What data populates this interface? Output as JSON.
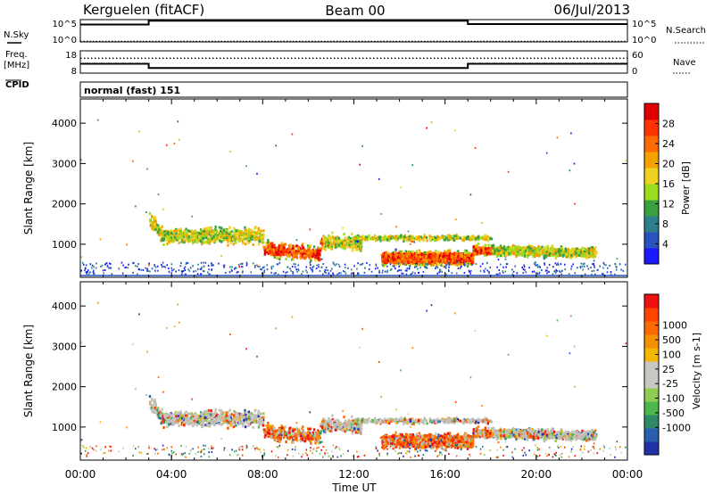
{
  "header": {
    "station": "Kerguelen (fitACF)",
    "beam": "Beam 00",
    "date": "06/Jul/2013"
  },
  "cpid_label": "CPID",
  "cpid_text": "normal (fast) 151",
  "chart_data": [
    {
      "type": "line",
      "name": "noise-panel",
      "left_label": "N.Sky",
      "right_label": "N.Search",
      "left_ticks": [
        "10^5",
        "10^0"
      ],
      "right_ticks": [
        "10^5",
        "10^0"
      ],
      "segments_x": [
        0,
        3,
        3,
        17,
        17,
        24
      ],
      "sky_levels_frac": [
        0.78,
        0.78,
        0.95,
        0.95,
        0.8,
        0.8
      ],
      "search_levels_frac": [
        0.03,
        0.03,
        0.03,
        0.03,
        0.03,
        0.03
      ]
    },
    {
      "type": "line",
      "name": "frequency-panel",
      "left_label_line1": "Freq.",
      "left_label_line2": "[MHz]",
      "right_label": "Nave",
      "left_ticks": [
        "18",
        "8"
      ],
      "right_ticks": [
        "60",
        "0"
      ],
      "left_range": [
        8,
        18
      ],
      "right_range": [
        0,
        60
      ],
      "freq_points": [
        [
          0,
          12.2
        ],
        [
          3,
          12.2
        ],
        [
          3,
          10.3
        ],
        [
          17,
          10.3
        ],
        [
          17,
          12.2
        ],
        [
          24,
          12.2
        ]
      ],
      "nave_points": [
        [
          0,
          40
        ],
        [
          3,
          40
        ],
        [
          3,
          40
        ],
        [
          17,
          40
        ],
        [
          17,
          40
        ],
        [
          24,
          40
        ]
      ]
    },
    {
      "type": "heatmap",
      "name": "power-panel",
      "ylabel": "Slant Range [km]",
      "y_ticks": [
        1000,
        2000,
        3000,
        4000
      ],
      "ylim": [
        180,
        4600
      ],
      "xlim": [
        0,
        24
      ],
      "colorbar_label": "Power [dB]",
      "colorbar_ticks": [
        "4",
        "8",
        "12",
        "16",
        "20",
        "24",
        "28"
      ],
      "colorbar_colors": [
        "#1a1aff",
        "#2a52be",
        "#2e7f8e",
        "#3aa040",
        "#9bdc1e",
        "#f0d020",
        "#f5a200",
        "#ff6a00",
        "#ff3300",
        "#e00000"
      ]
    },
    {
      "type": "heatmap",
      "name": "velocity-panel",
      "ylabel": "Slant Range [km]",
      "y_ticks": [
        1000,
        2000,
        3000,
        4000
      ],
      "ylim": [
        180,
        4600
      ],
      "xlim": [
        0,
        24
      ],
      "xlabel": "Time UT",
      "x_ticks": [
        "00:00",
        "04:00",
        "08:00",
        "12:00",
        "16:00",
        "20:00",
        "00:00"
      ],
      "colorbar_label": "Velocity [m s-1]",
      "colorbar_ticks": [
        "1000",
        "500",
        "100",
        "25",
        "-25",
        "-100",
        "-500",
        "-1000"
      ],
      "colorbar_colors": [
        "#2233aa",
        "#2a5fb0",
        "#2f8a66",
        "#4fb84a",
        "#8fcc50",
        "#c8c8c0",
        "#c8c8c0",
        "#f5b800",
        "#f59000",
        "#ff6a00",
        "#ff4400",
        "#ee1111"
      ]
    }
  ]
}
